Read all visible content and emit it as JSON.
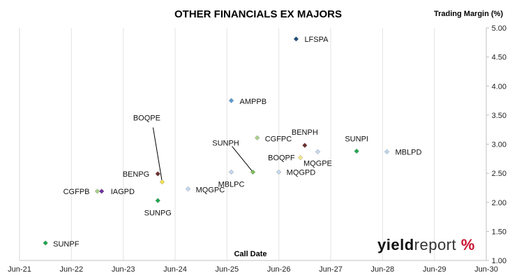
{
  "chart_data": {
    "type": "scatter",
    "title": "OTHER FINANCIALS EX MAJORS",
    "ylabel": "Trading Margin (%)",
    "xlabel": "Call Date",
    "x_ticks": [
      "Jun-21",
      "Jun-22",
      "Jun-23",
      "Jun-24",
      "Jun-25",
      "Jun-26",
      "Jun-27",
      "Jun-28",
      "Jun-29",
      "Jun-30"
    ],
    "y_ticks": [
      "1.00",
      "1.50",
      "2.00",
      "2.50",
      "3.00",
      "3.50",
      "4.00",
      "4.50",
      "5.00"
    ],
    "ylim": [
      1.0,
      5.0
    ],
    "xlim": [
      "2021-06",
      "2030-06"
    ],
    "y_axis_position": "right",
    "grid": "vertical",
    "points": [
      {
        "label": "LFSPA",
        "x": "2026-10",
        "y": 4.81,
        "color": "#1f4e79",
        "show_label": true
      },
      {
        "label": "AMPPB",
        "x": "2025-07",
        "y": 3.75,
        "color": "#5b9bd5",
        "show_label": true
      },
      {
        "label": "BOQPE",
        "x": "2024-03",
        "y": 2.35,
        "color": "#f2e24a",
        "show_label": true
      },
      {
        "label": "CGFPC",
        "x": "2026-01",
        "y": 3.11,
        "color": "#a9d18e",
        "show_label": true
      },
      {
        "label": "BENPH",
        "x": "2026-12",
        "y": 2.98,
        "color": "#6b2f2f",
        "show_label": true
      },
      {
        "label": "SUNPI",
        "x": "2027-12",
        "y": 2.88,
        "color": "#1fa84f",
        "show_label": true
      },
      {
        "label": "MBLPD",
        "x": "2028-07",
        "y": 2.87,
        "color": "#bdd7ee",
        "show_label": true
      },
      {
        "label": "SUNPH",
        "x": "2025-12",
        "y": 2.52,
        "color": "#7bbf5a",
        "show_label": true
      },
      {
        "label": "BOQPF",
        "x": "2026-11",
        "y": 2.77,
        "color": "#f5e68a",
        "show_label": true
      },
      {
        "label": "MQGPE",
        "x": "2027-03",
        "y": 2.87,
        "color": "#c5d9f1",
        "show_label": true
      },
      {
        "label": "MBLPC",
        "x": "2025-07",
        "y": 2.52,
        "color": "#c5d9f1",
        "show_label": true
      },
      {
        "label": "MQGPD",
        "x": "2026-06",
        "y": 2.52,
        "color": "#c5d9f1",
        "show_label": true
      },
      {
        "label": "BENPG",
        "x": "2024-02",
        "y": 2.49,
        "color": "#6b2f2f",
        "show_label": true
      },
      {
        "label": "MQGPC",
        "x": "2024-09",
        "y": 2.23,
        "color": "#c5d9f1",
        "show_label": true
      },
      {
        "label": "CGFPB",
        "x": "2022-12",
        "y": 2.19,
        "color": "#a9d18e",
        "show_label": true
      },
      {
        "label": "IAGPD",
        "x": "2023-01",
        "y": 2.19,
        "color": "#7030a0",
        "show_label": true
      },
      {
        "label": "SUNPG",
        "x": "2024-02",
        "y": 2.03,
        "color": "#1fa84f",
        "show_label": true
      },
      {
        "label": "SUNPF",
        "x": "2021-12",
        "y": 1.3,
        "color": "#1fa84f",
        "show_label": true
      }
    ]
  },
  "watermark": {
    "part1": "yield",
    "part2": "report",
    "part3": " ",
    "part4": "%"
  }
}
